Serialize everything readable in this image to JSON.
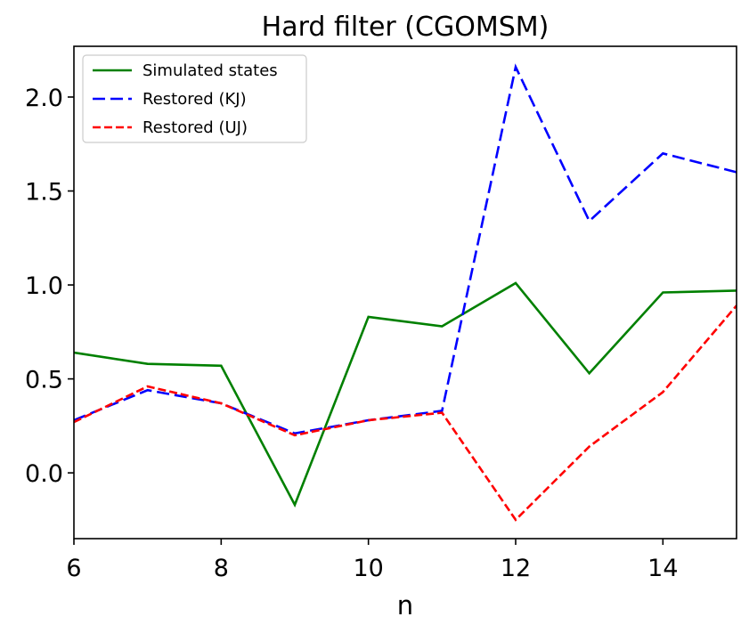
{
  "chart_data": {
    "type": "line",
    "title": "Hard filter (CGOMSM)",
    "xlabel": "n",
    "ylabel": "",
    "xlim": [
      6,
      15
    ],
    "ylim": [
      -0.35,
      2.27
    ],
    "x_ticks": [
      6,
      8,
      10,
      12,
      14
    ],
    "x_tick_labels": [
      "6",
      "8",
      "10",
      "12",
      "14"
    ],
    "y_ticks": [
      0.0,
      0.5,
      1.0,
      1.5,
      2.0
    ],
    "y_tick_labels": [
      "0.0",
      "0.5",
      "1.0",
      "1.5",
      "2.0"
    ],
    "grid": false,
    "legend_position": "top-left",
    "x": [
      6,
      7,
      8,
      9,
      10,
      11,
      12,
      13,
      14,
      15
    ],
    "series": [
      {
        "name": "Simulated states",
        "color": "#008000",
        "style": "solid",
        "values": [
          0.64,
          0.58,
          0.57,
          -0.17,
          0.83,
          0.78,
          1.01,
          0.53,
          0.96,
          0.97
        ]
      },
      {
        "name": "Restored (KJ)",
        "color": "#0000ff",
        "style": "dashed",
        "values": [
          0.28,
          0.44,
          0.37,
          0.21,
          0.28,
          0.33,
          2.16,
          1.34,
          1.7,
          1.6
        ]
      },
      {
        "name": "Restored (UJ)",
        "color": "#ff0000",
        "style": "dotted-dash",
        "values": [
          0.27,
          0.46,
          0.37,
          0.2,
          0.28,
          0.32,
          -0.25,
          0.14,
          0.43,
          0.89
        ]
      }
    ]
  }
}
